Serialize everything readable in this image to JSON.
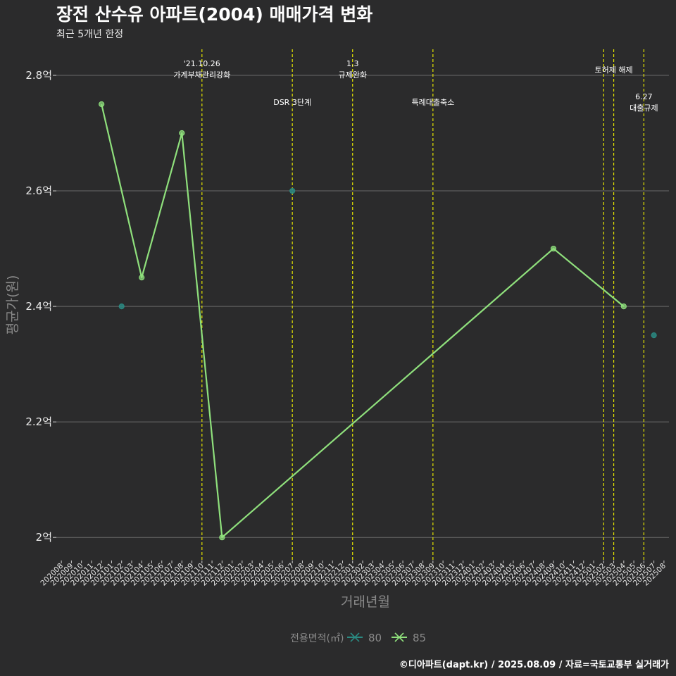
{
  "title": "장전 산수유 아파트(2004) 매매가격 변화",
  "subtitle": "최근 5개년 한정",
  "caption": "©디아파트(dapt.kr) / 2025.08.09 / 자료=국토교통부 실거래가",
  "chart_data": {
    "type": "line",
    "xlabel": "거래년월",
    "ylabel": "평균가(원)",
    "ylim": [
      1.96,
      2.85
    ],
    "yticks": [
      {
        "value": 2.0,
        "label": "2억"
      },
      {
        "value": 2.2,
        "label": "2.2억"
      },
      {
        "value": 2.4,
        "label": "2.4억"
      },
      {
        "value": 2.6,
        "label": "2.6억"
      },
      {
        "value": 2.8,
        "label": "2.8억"
      }
    ],
    "categories": [
      "202008",
      "202009",
      "202010",
      "202011",
      "202012",
      "202101",
      "202102",
      "202103",
      "202104",
      "202105",
      "202106",
      "202107",
      "202108",
      "202109",
      "202110",
      "202111",
      "202112",
      "202201",
      "202202",
      "202203",
      "202204",
      "202205",
      "202206",
      "202207",
      "202208",
      "202209",
      "202210",
      "202211",
      "202212",
      "202301",
      "202302",
      "202303",
      "202304",
      "202305",
      "202306",
      "202307",
      "202308",
      "202309",
      "202310",
      "202311",
      "202312",
      "202401",
      "202402",
      "202403",
      "202404",
      "202405",
      "202406",
      "202407",
      "202408",
      "202409",
      "202410",
      "202411",
      "202412",
      "202501",
      "202502",
      "202503",
      "202504",
      "202505",
      "202506",
      "202507",
      "202508"
    ],
    "series": [
      {
        "name": "80",
        "color": "#2a8a82",
        "line": false,
        "points": [
          {
            "x": "202102",
            "y": 2.4
          },
          {
            "x": "202207",
            "y": 2.6
          },
          {
            "x": "202507",
            "y": 2.35
          }
        ]
      },
      {
        "name": "85",
        "color": "#8fe07c",
        "line": true,
        "points": [
          {
            "x": "202012",
            "y": 2.75
          },
          {
            "x": "202104",
            "y": 2.45
          },
          {
            "x": "202108",
            "y": 2.7
          },
          {
            "x": "202112",
            "y": 2.0
          },
          {
            "x": "202409",
            "y": 2.5
          },
          {
            "x": "202504",
            "y": 2.4
          }
        ]
      }
    ],
    "events": [
      {
        "x": "202110",
        "lines": [
          "'21.10.26",
          "가계부채관리강화"
        ],
        "row": 0
      },
      {
        "x": "202207",
        "lines": [
          "DSR 3단계"
        ],
        "row": 1
      },
      {
        "x": "202301",
        "lines": [
          "1.3",
          "규제완화"
        ],
        "row": 0
      },
      {
        "x": "202309",
        "lines": [
          "특례대출축소"
        ],
        "row": 1
      },
      {
        "x": "202502",
        "lines": [],
        "row": 0
      },
      {
        "x": "202503",
        "lines": [
          "토허제 해제"
        ],
        "row": 0
      },
      {
        "x": "202506",
        "lines": [
          "6.27",
          "대출규제"
        ],
        "row": 1
      }
    ],
    "event_color": "#e6e600",
    "grid": true,
    "legend": {
      "title": "전용면적(㎡)",
      "position": "bottom"
    }
  }
}
